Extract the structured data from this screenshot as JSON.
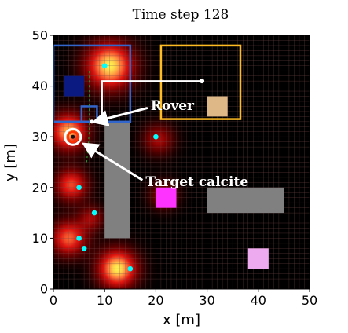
{
  "chart_data": {
    "type": "heatmap",
    "title": "Time step 128",
    "xlabel": "x [m]",
    "ylabel": "y [m]",
    "xlim": [
      0,
      50
    ],
    "ylim": [
      0,
      50
    ],
    "xticks": [
      "0",
      "10",
      "20",
      "30",
      "40",
      "50"
    ],
    "yticks": [
      "0",
      "10",
      "20",
      "30",
      "40",
      "50"
    ],
    "grid": true,
    "heat_sources": [
      {
        "x": 11,
        "y": 44,
        "strength": 1.0,
        "spread": 3.3
      },
      {
        "x": 3,
        "y": 31,
        "strength": 0.9,
        "spread": 2.6
      },
      {
        "x": 3.5,
        "y": 20.5,
        "strength": 0.7,
        "spread": 2.3
      },
      {
        "x": 20.5,
        "y": 29.5,
        "strength": 0.45,
        "spread": 2.2
      },
      {
        "x": 21.5,
        "y": 18.5,
        "strength": 0.4,
        "spread": 2.0
      },
      {
        "x": 12.5,
        "y": 4,
        "strength": 1.0,
        "spread": 2.7
      },
      {
        "x": 3,
        "y": 10,
        "strength": 0.75,
        "spread": 2.5
      },
      {
        "x": 7.5,
        "y": 14,
        "strength": 0.4,
        "spread": 1.8
      }
    ],
    "obstacles": [
      {
        "x0": 10,
        "x1": 15,
        "y0": 10,
        "y1": 33,
        "color": "#808080"
      },
      {
        "x0": 30,
        "x1": 45,
        "y0": 15,
        "y1": 20,
        "color": "#808080"
      }
    ],
    "colored_squares": [
      {
        "x0": 2,
        "x1": 6,
        "y0": 38,
        "y1": 42,
        "color": "#0a1a80"
      },
      {
        "x0": 30,
        "x1": 34,
        "y0": 34,
        "y1": 38,
        "color": "#deb887"
      },
      {
        "x0": 20,
        "x1": 24,
        "y0": 16,
        "y1": 20,
        "color": "#ff33ff"
      },
      {
        "x0": 38,
        "x1": 42,
        "y0": 4,
        "y1": 8,
        "color": "#eeaaee"
      }
    ],
    "rectangles": [
      {
        "x0": 0,
        "x1": 15,
        "y0": 33,
        "y1": 48,
        "color": "#3366cc"
      },
      {
        "x0": 5.5,
        "x1": 8.5,
        "y0": 33,
        "y1": 36,
        "color": "#3366cc"
      },
      {
        "x0": 21,
        "x1": 36.5,
        "y0": 33.5,
        "y1": 48,
        "color": "#ffbb22"
      }
    ],
    "cyan_points": [
      {
        "x": 10,
        "y": 44
      },
      {
        "x": 20,
        "y": 30
      },
      {
        "x": 5,
        "y": 20
      },
      {
        "x": 8,
        "y": 15
      },
      {
        "x": 5,
        "y": 10
      },
      {
        "x": 6,
        "y": 8
      },
      {
        "x": 15,
        "y": 4
      }
    ],
    "white_path": [
      [
        29,
        41
      ],
      [
        9.5,
        41
      ],
      [
        9.5,
        33
      ]
    ],
    "dashed_path": [
      [
        7,
        43
      ],
      [
        7,
        31
      ],
      [
        6.5,
        25
      ]
    ],
    "rover": {
      "x": 7.5,
      "y": 33
    },
    "target": {
      "x": 3.8,
      "y": 30,
      "ring_color": "#ff3300"
    },
    "annotations": [
      {
        "text": "Rover",
        "text_x": 19,
        "text_y": 36,
        "arrow_to_x": 7.5,
        "arrow_to_y": 33
      },
      {
        "text": "Target calcite",
        "text_x": 18,
        "text_y": 21,
        "arrow_to_x": 5.5,
        "arrow_to_y": 28.5
      }
    ]
  }
}
